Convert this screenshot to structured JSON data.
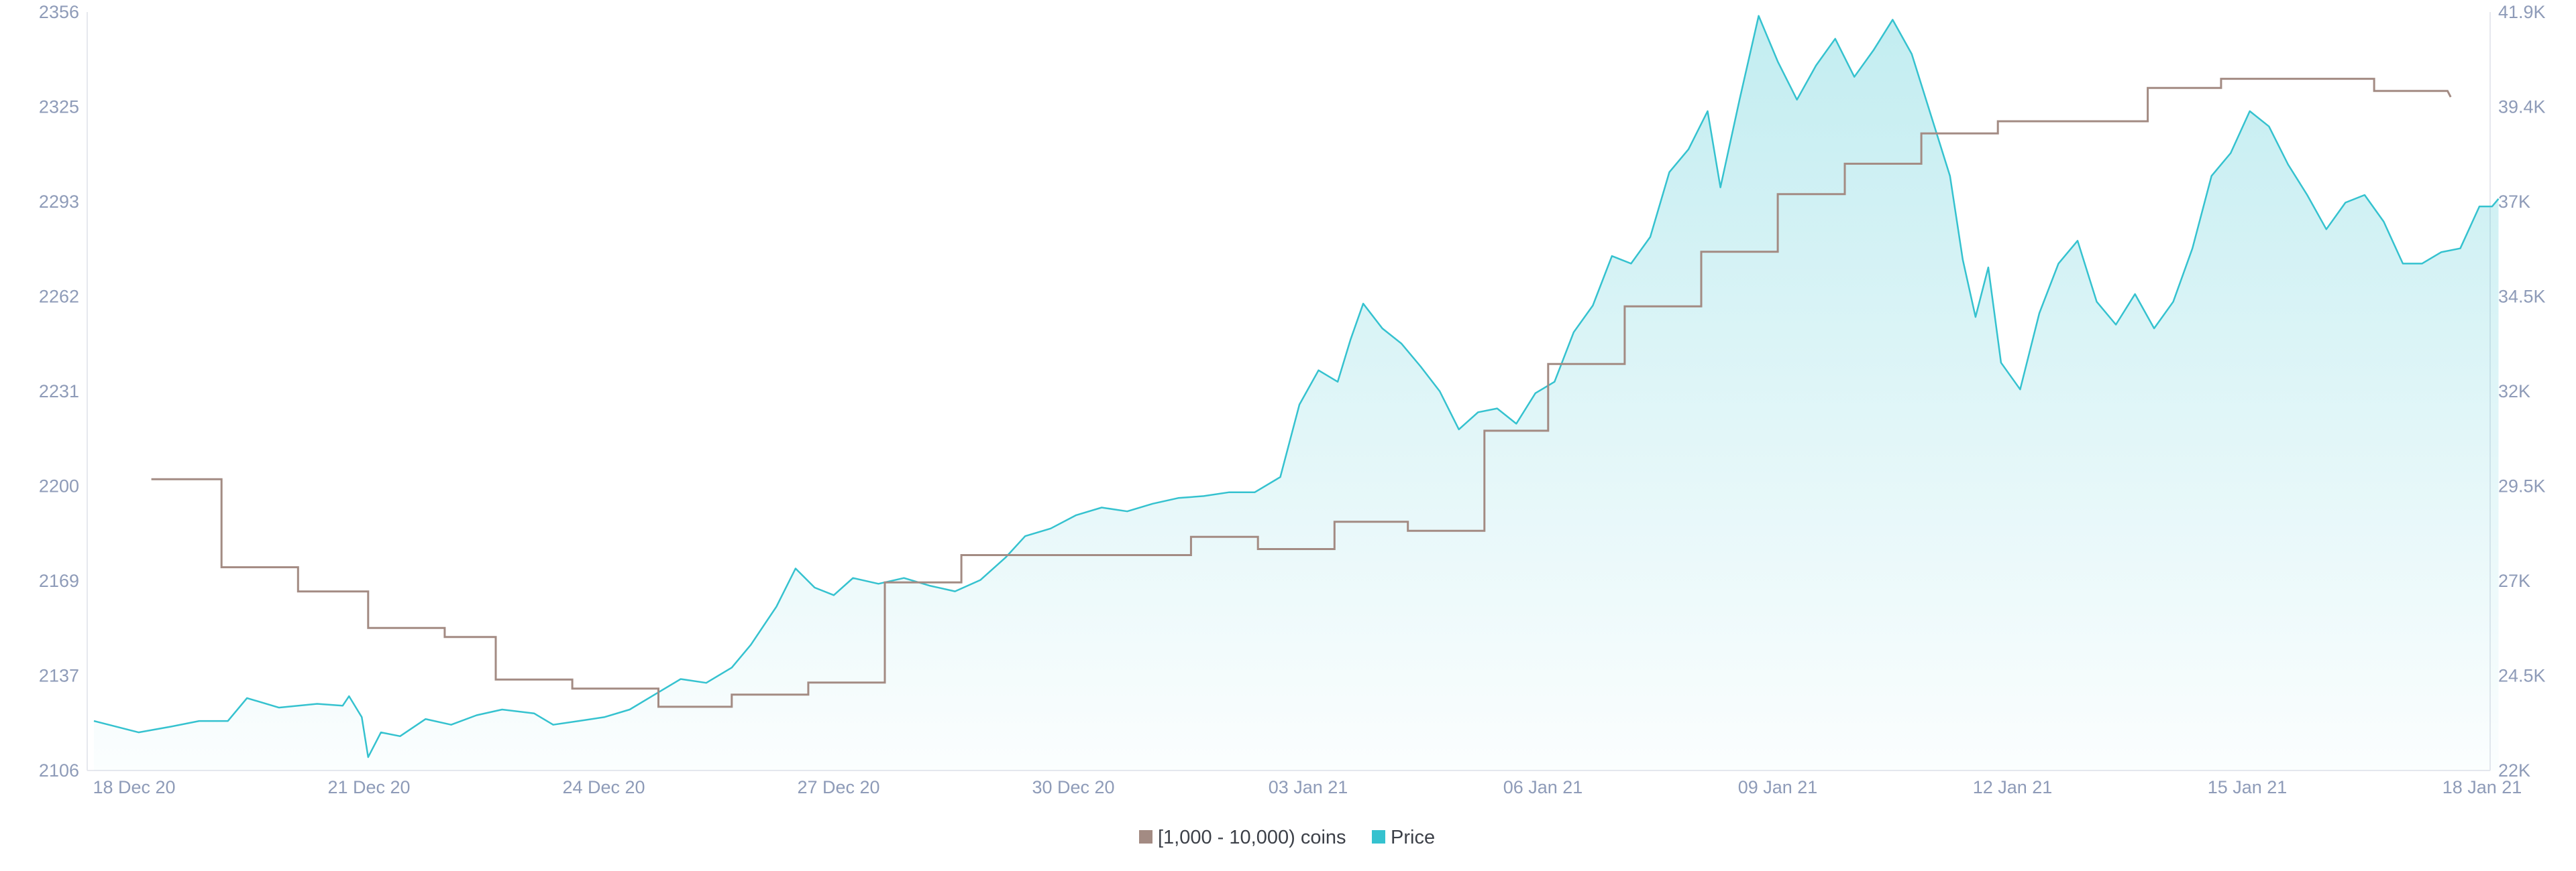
{
  "chart_data": {
    "type": "line",
    "title": "",
    "x_ticks": [
      "18 Dec 20",
      "21 Dec 20",
      "24 Dec 20",
      "27 Dec 20",
      "30 Dec 20",
      "03 Jan 21",
      "06 Jan 21",
      "09 Jan 21",
      "12 Jan 21",
      "15 Jan 21",
      "18 Jan 21"
    ],
    "y_left": {
      "ticks": [
        "2106",
        "2137",
        "2169",
        "2200",
        "2231",
        "2262",
        "2293",
        "2325",
        "2356"
      ],
      "range": [
        2106,
        2356
      ]
    },
    "y_right": {
      "ticks": [
        "22K",
        "24.5K",
        "27K",
        "29.5K",
        "32K",
        "34.5K",
        "37K",
        "39.4K",
        "41.9K"
      ],
      "range": [
        22000,
        41900
      ]
    },
    "grid": "horizontal-none",
    "legend_position": "bottom-center",
    "series": [
      {
        "name": "[1,000 - 10,000) coins",
        "axis": "left",
        "style": "step",
        "color": "#a38b83",
        "points": [
          [
            "2020-12-18T18:00",
            2202
          ],
          [
            "2020-12-19T16:00",
            2202
          ],
          [
            "2020-12-19T16:00",
            2173
          ],
          [
            "2020-12-20T16:00",
            2173
          ],
          [
            "2020-12-20T16:00",
            2165
          ],
          [
            "2020-12-21T14:00",
            2165
          ],
          [
            "2020-12-21T14:00",
            2153
          ],
          [
            "2020-12-22T14:00",
            2153
          ],
          [
            "2020-12-22T14:00",
            2150
          ],
          [
            "2020-12-23T06:00",
            2150
          ],
          [
            "2020-12-23T06:00",
            2136
          ],
          [
            "2020-12-24T06:00",
            2136
          ],
          [
            "2020-12-24T06:00",
            2133
          ],
          [
            "2020-12-25T09:00",
            2133
          ],
          [
            "2020-12-25T09:00",
            2127
          ],
          [
            "2020-12-26T08:00",
            2127
          ],
          [
            "2020-12-26T08:00",
            2131
          ],
          [
            "2020-12-27T08:00",
            2131
          ],
          [
            "2020-12-27T08:00",
            2135
          ],
          [
            "2020-12-28T08:00",
            2135
          ],
          [
            "2020-12-28T08:00",
            2168
          ],
          [
            "2020-12-29T08:00",
            2168
          ],
          [
            "2020-12-29T08:00",
            2177
          ],
          [
            "2021-01-01T08:00",
            2177
          ],
          [
            "2021-01-01T08:00",
            2183
          ],
          [
            "2021-01-02T05:00",
            2183
          ],
          [
            "2021-01-02T05:00",
            2179
          ],
          [
            "2021-01-03T05:00",
            2179
          ],
          [
            "2021-01-03T05:00",
            2188
          ],
          [
            "2021-01-04T04:00",
            2188
          ],
          [
            "2021-01-04T04:00",
            2185
          ],
          [
            "2021-01-05T04:00",
            2185
          ],
          [
            "2021-01-05T04:00",
            2218
          ],
          [
            "2021-01-06T00:00",
            2218
          ],
          [
            "2021-01-06T00:00",
            2240
          ],
          [
            "2021-01-07T00:00",
            2240
          ],
          [
            "2021-01-07T00:00",
            2259
          ],
          [
            "2021-01-08T00:00",
            2259
          ],
          [
            "2021-01-08T00:00",
            2277
          ],
          [
            "2021-01-09T00:00",
            2277
          ],
          [
            "2021-01-09T00:00",
            2296
          ],
          [
            "2021-01-09T21:00",
            2296
          ],
          [
            "2021-01-09T21:00",
            2306
          ],
          [
            "2021-01-10T21:00",
            2306
          ],
          [
            "2021-01-10T21:00",
            2316
          ],
          [
            "2021-01-11T21:00",
            2316
          ],
          [
            "2021-01-11T21:00",
            2320
          ],
          [
            "2021-01-13T20:00",
            2320
          ],
          [
            "2021-01-13T20:00",
            2331
          ],
          [
            "2021-01-14T19:00",
            2331
          ],
          [
            "2021-01-14T19:00",
            2334
          ],
          [
            "2021-01-16T19:00",
            2334
          ],
          [
            "2021-01-16T19:00",
            2330
          ],
          [
            "2021-01-17T18:00",
            2330
          ],
          [
            "2021-01-17T19:00",
            2328
          ]
        ]
      },
      {
        "name": "Price",
        "axis": "right",
        "style": "area",
        "color": "#35c2cf",
        "points": [
          [
            "2020-12-18T00:00",
            23300
          ],
          [
            "2020-12-18T14:00",
            23000
          ],
          [
            "2020-12-19T00:00",
            23150
          ],
          [
            "2020-12-19T09:00",
            23300
          ],
          [
            "2020-12-19T18:00",
            23300
          ],
          [
            "2020-12-20T00:00",
            23900
          ],
          [
            "2020-12-20T10:00",
            23650
          ],
          [
            "2020-12-20T22:00",
            23750
          ],
          [
            "2020-12-21T06:00",
            23700
          ],
          [
            "2020-12-21T08:00",
            23950
          ],
          [
            "2020-12-21T12:00",
            23400
          ],
          [
            "2020-12-21T14:00",
            22350
          ],
          [
            "2020-12-21T18:00",
            23000
          ],
          [
            "2020-12-22T00:00",
            22900
          ],
          [
            "2020-12-22T08:00",
            23350
          ],
          [
            "2020-12-22T16:00",
            23200
          ],
          [
            "2020-12-23T00:00",
            23450
          ],
          [
            "2020-12-23T08:00",
            23600
          ],
          [
            "2020-12-23T18:00",
            23500
          ],
          [
            "2020-12-24T00:00",
            23200
          ],
          [
            "2020-12-24T08:00",
            23300
          ],
          [
            "2020-12-24T16:00",
            23400
          ],
          [
            "2020-12-25T00:00",
            23600
          ],
          [
            "2020-12-25T08:00",
            24000
          ],
          [
            "2020-12-25T16:00",
            24400
          ],
          [
            "2020-12-26T00:00",
            24300
          ],
          [
            "2020-12-26T08:00",
            24700
          ],
          [
            "2020-12-26T14:00",
            25300
          ],
          [
            "2020-12-26T22:00",
            26300
          ],
          [
            "2020-12-27T04:00",
            27300
          ],
          [
            "2020-12-27T10:00",
            26800
          ],
          [
            "2020-12-27T16:00",
            26600
          ],
          [
            "2020-12-27T22:00",
            27050
          ],
          [
            "2020-12-28T06:00",
            26900
          ],
          [
            "2020-12-28T14:00",
            27050
          ],
          [
            "2020-12-28T22:00",
            26850
          ],
          [
            "2020-12-29T06:00",
            26700
          ],
          [
            "2020-12-29T14:00",
            27000
          ],
          [
            "2020-12-29T22:00",
            27600
          ],
          [
            "2020-12-30T04:00",
            28150
          ],
          [
            "2020-12-30T12:00",
            28350
          ],
          [
            "2020-12-30T20:00",
            28700
          ],
          [
            "2020-12-31T04:00",
            28900
          ],
          [
            "2020-12-31T12:00",
            28800
          ],
          [
            "2020-12-31T20:00",
            29000
          ],
          [
            "2021-01-01T04:00",
            29150
          ],
          [
            "2021-01-01T12:00",
            29200
          ],
          [
            "2021-01-01T20:00",
            29300
          ],
          [
            "2021-01-02T04:00",
            29300
          ],
          [
            "2021-01-02T12:00",
            29700
          ],
          [
            "2021-01-02T18:00",
            31600
          ],
          [
            "2021-01-03T00:00",
            32500
          ],
          [
            "2021-01-03T06:00",
            32200
          ],
          [
            "2021-01-03T10:00",
            33300
          ],
          [
            "2021-01-03T14:00",
            34250
          ],
          [
            "2021-01-03T20:00",
            33600
          ],
          [
            "2021-01-04T02:00",
            33200
          ],
          [
            "2021-01-04T08:00",
            32600
          ],
          [
            "2021-01-04T14:00",
            31950
          ],
          [
            "2021-01-04T20:00",
            30950
          ],
          [
            "2021-01-05T02:00",
            31400
          ],
          [
            "2021-01-05T08:00",
            31500
          ],
          [
            "2021-01-05T14:00",
            31100
          ],
          [
            "2021-01-05T20:00",
            31900
          ],
          [
            "2021-01-06T02:00",
            32200
          ],
          [
            "2021-01-06T08:00",
            33500
          ],
          [
            "2021-01-06T14:00",
            34200
          ],
          [
            "2021-01-06T20:00",
            35500
          ],
          [
            "2021-01-07T02:00",
            35300
          ],
          [
            "2021-01-07T08:00",
            36000
          ],
          [
            "2021-01-07T14:00",
            37700
          ],
          [
            "2021-01-07T20:00",
            38300
          ],
          [
            "2021-01-08T02:00",
            39300
          ],
          [
            "2021-01-08T06:00",
            37300
          ],
          [
            "2021-01-08T12:00",
            39600
          ],
          [
            "2021-01-08T18:00",
            41800
          ],
          [
            "2021-01-09T00:00",
            40600
          ],
          [
            "2021-01-09T06:00",
            39600
          ],
          [
            "2021-01-09T12:00",
            40500
          ],
          [
            "2021-01-09T18:00",
            41200
          ],
          [
            "2021-01-10T00:00",
            40200
          ],
          [
            "2021-01-10T06:00",
            40900
          ],
          [
            "2021-01-10T12:00",
            41700
          ],
          [
            "2021-01-10T18:00",
            40800
          ],
          [
            "2021-01-11T00:00",
            39200
          ],
          [
            "2021-01-11T06:00",
            37600
          ],
          [
            "2021-01-11T10:00",
            35400
          ],
          [
            "2021-01-11T14:00",
            33900
          ],
          [
            "2021-01-11T18:00",
            35200
          ],
          [
            "2021-01-11T22:00",
            32700
          ],
          [
            "2021-01-12T04:00",
            32000
          ],
          [
            "2021-01-12T10:00",
            34000
          ],
          [
            "2021-01-12T16:00",
            35300
          ],
          [
            "2021-01-12T22:00",
            35900
          ],
          [
            "2021-01-13T04:00",
            34300
          ],
          [
            "2021-01-13T10:00",
            33700
          ],
          [
            "2021-01-13T16:00",
            34500
          ],
          [
            "2021-01-13T22:00",
            33600
          ],
          [
            "2021-01-14T04:00",
            34300
          ],
          [
            "2021-01-14T10:00",
            35700
          ],
          [
            "2021-01-14T16:00",
            37600
          ],
          [
            "2021-01-14T22:00",
            38200
          ],
          [
            "2021-01-15T04:00",
            39300
          ],
          [
            "2021-01-15T10:00",
            38900
          ],
          [
            "2021-01-15T16:00",
            37900
          ],
          [
            "2021-01-15T22:00",
            37100
          ],
          [
            "2021-01-16T04:00",
            36200
          ],
          [
            "2021-01-16T10:00",
            36900
          ],
          [
            "2021-01-16T16:00",
            37100
          ],
          [
            "2021-01-16T22:00",
            36400
          ],
          [
            "2021-01-17T04:00",
            35300
          ],
          [
            "2021-01-17T10:00",
            35300
          ],
          [
            "2021-01-17T16:00",
            35600
          ],
          [
            "2021-01-17T22:00",
            35700
          ],
          [
            "2021-01-18T04:00",
            36800
          ],
          [
            "2021-01-18T08:00",
            36800
          ],
          [
            "2021-01-18T10:00",
            37000
          ]
        ]
      }
    ]
  }
}
